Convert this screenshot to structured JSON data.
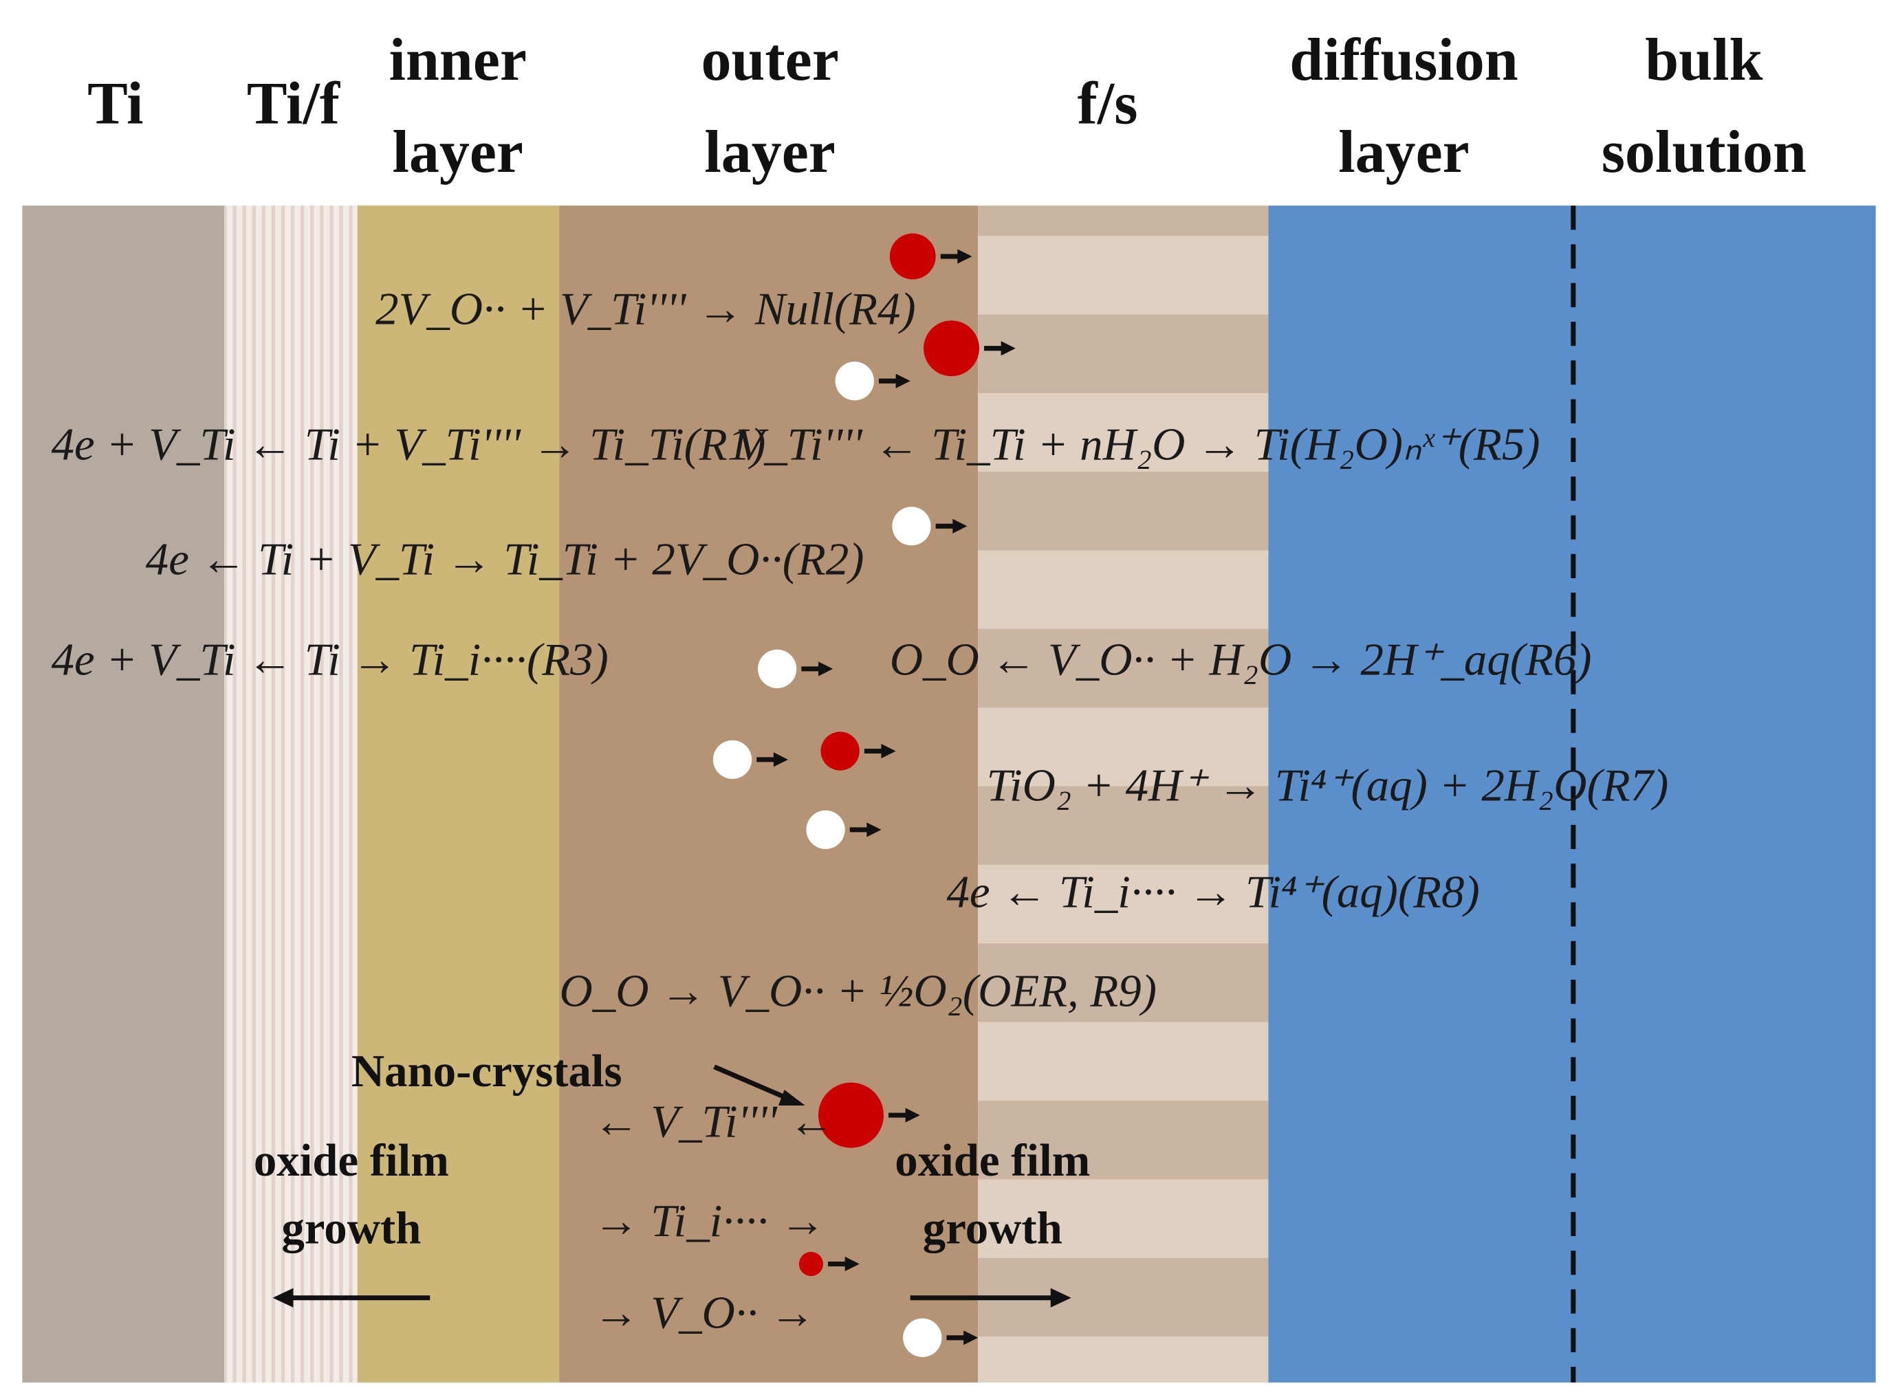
{
  "header": {
    "columns": [
      {
        "lines": [
          "Ti"
        ]
      },
      {
        "lines": [
          "Ti/f"
        ]
      },
      {
        "lines": [
          "inner",
          "layer"
        ]
      },
      {
        "lines": [
          "outer",
          "layer"
        ]
      },
      {
        "lines": [
          "f/s"
        ]
      },
      {
        "lines": [
          "diffusion",
          "layer"
        ]
      },
      {
        "lines": [
          "bulk",
          "solution"
        ]
      }
    ]
  },
  "reactions": [
    "2V_O·· + V_Ti'''' → Null(R4)",
    "4e + V_Ti ← Ti + V_Ti'''' → Ti_Ti(R1)",
    "V_Ti'''' ← Ti_Ti + nH₂O → Ti(H₂O)ₙˣ⁺(R5)",
    "4e ← Ti + V_Ti → Ti_Ti + 2V_O··(R2)",
    "4e + V_Ti ← Ti → Ti_i····(R3)",
    "O_O ← V_O·· + H₂O → 2H⁺_aq(R6)",
    "TiO₂ + 4H⁺ → Ti⁴⁺(aq) + 2H₂O(R7)",
    "4e ← Ti_i···· → Ti⁴⁺(aq)(R8)",
    "O_O → V_O·· + ½O₂(OER, R9)"
  ],
  "labels": {
    "nano": "Nano-crystals",
    "flux": [
      "← V_Ti'''' ←",
      "→ Ti_i···· →",
      "→ V_O·· →"
    ],
    "growth_left": [
      "oxide film",
      "growth"
    ],
    "growth_right": [
      "oxide film",
      "growth"
    ]
  }
}
